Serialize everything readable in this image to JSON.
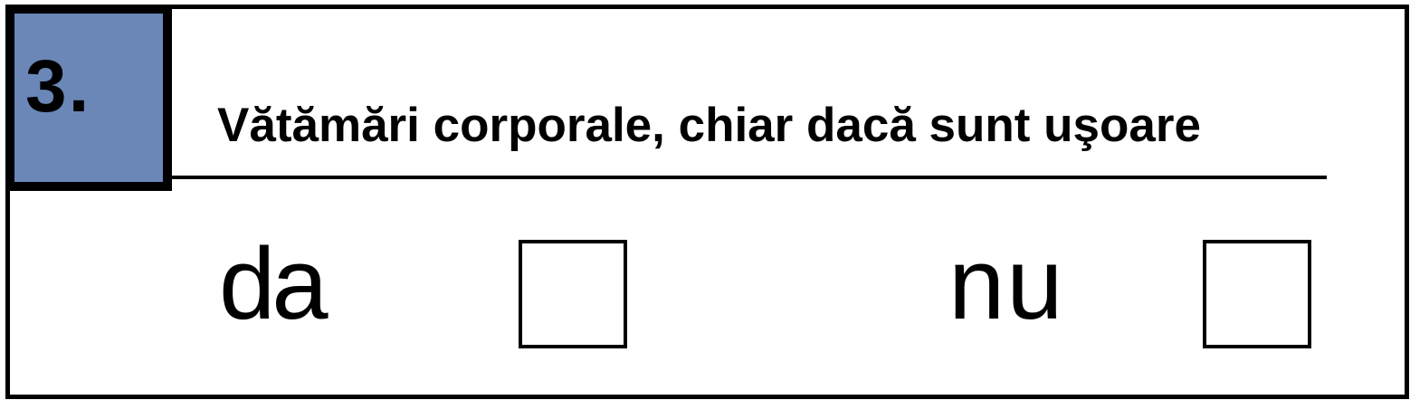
{
  "section": {
    "number": "3.",
    "title": "Vătămări corporale, chiar dacă sunt uşoare"
  },
  "options": {
    "yes_label": "da",
    "no_label": "nu"
  },
  "colors": {
    "badge_background": "#6a87b8",
    "border": "#000000",
    "background": "#ffffff"
  }
}
